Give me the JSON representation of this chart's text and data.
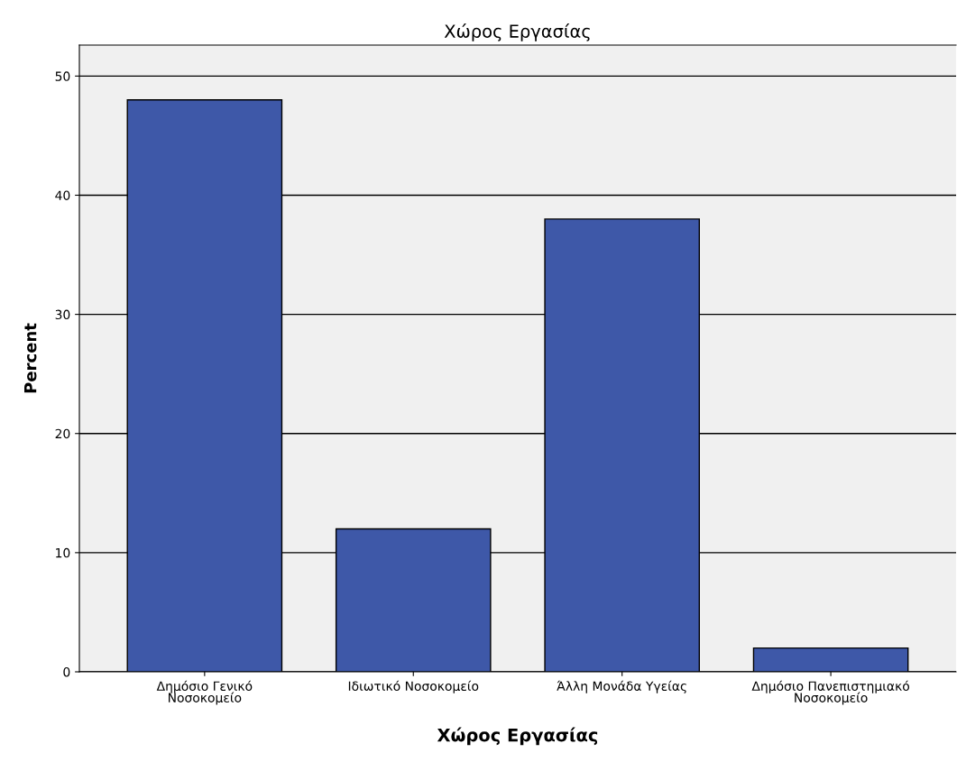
{
  "chart_data": {
    "type": "bar",
    "title": "Χώρος Εργασίας",
    "xlabel": "Χώρος Εργασίας",
    "ylabel": "Percent",
    "categories": [
      "Δημόσιο Γενικό\nΝοσοκομείο",
      "Ιδιωτικό Νοσοκομείο",
      "Άλλη Μονάδα Υγείας",
      "Δημόσιο Πανεπιστημιακό\nΝοσοκομείο"
    ],
    "values": [
      48,
      12,
      38,
      2
    ],
    "color": "#3e58a8",
    "ylim": [
      0,
      52.6
    ],
    "yticks": [
      0,
      10,
      20,
      30,
      40,
      50
    ],
    "grid": "y",
    "legend": false
  }
}
